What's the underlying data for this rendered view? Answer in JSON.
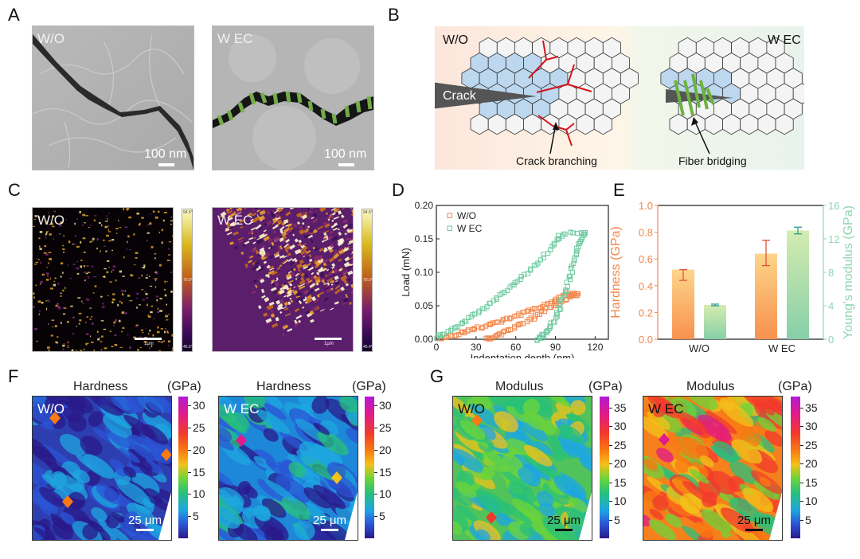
{
  "panels": {
    "A": {
      "letter": "A",
      "left": {
        "label": "W/O",
        "scale": "100 nm"
      },
      "right": {
        "label": "W EC",
        "scale": "100 nm"
      }
    },
    "B": {
      "letter": "B",
      "left_label": "W/O",
      "right_label": "W EC",
      "crack_label": "Crack",
      "annot_left": "Crack branching",
      "annot_right": "Fiber bridging",
      "colors": {
        "grain": "#f4f4f4",
        "affected_grain": "#bcd7ee",
        "crack": "#555555",
        "branch": "#d4141b",
        "fiber": "#6db33f"
      }
    },
    "C": {
      "letter": "C",
      "left": {
        "label": "W/O",
        "scale": "1μm",
        "cb_max": "94.5°",
        "cb_mid": "70.0°",
        "cb_min": "45.5°"
      },
      "right": {
        "label": "W EC",
        "scale": "1μm",
        "cb_max": "94.6°",
        "cb_mid": "70.0°",
        "cb_min": "45.4°"
      }
    },
    "D": {
      "letter": "D"
    },
    "E": {
      "letter": "E"
    },
    "F": {
      "letter": "F",
      "left": {
        "title": "Hardness",
        "unit": "(GPa)",
        "label": "W/O",
        "scale": "25 μm"
      },
      "right": {
        "title": "Hardness",
        "unit": "(GPa)",
        "label": "W EC",
        "scale": "25 μm"
      },
      "ticks": [
        "30",
        "25",
        "20",
        "15",
        "10",
        "5"
      ]
    },
    "G": {
      "letter": "G",
      "left": {
        "title": "Modulus",
        "unit": "(GPa)",
        "label": "W/O",
        "scale": "25 μm"
      },
      "right": {
        "title": "Modulus",
        "unit": "(GPa)",
        "label": "W EC",
        "scale": "25 μm"
      },
      "ticks": [
        "35",
        "30",
        "25",
        "20",
        "15",
        "10",
        "5"
      ]
    }
  },
  "chart_data": [
    {
      "id": "D",
      "type": "scatter",
      "title": "",
      "xlabel": "Indentation depth (nm)",
      "ylabel": "Load (mN)",
      "xlim": [
        0,
        130
      ],
      "ylim": [
        0,
        0.2
      ],
      "xticks": [
        "0",
        "30",
        "60",
        "90",
        "120"
      ],
      "yticks": [
        "0.00",
        "0.05",
        "0.10",
        "0.15",
        "0.20"
      ],
      "legend_position": "top-left",
      "series": [
        {
          "name": "W/O",
          "color": "#f4874b",
          "loading": [
            [
              0,
              0
            ],
            [
              10,
              0.004
            ],
            [
              20,
              0.01
            ],
            [
              30,
              0.016
            ],
            [
              40,
              0.022
            ],
            [
              50,
              0.028
            ],
            [
              60,
              0.035
            ],
            [
              70,
              0.042
            ],
            [
              80,
              0.05
            ],
            [
              90,
              0.058
            ],
            [
              98,
              0.068
            ],
            [
              107,
              0.068
            ]
          ],
          "unloading": [
            [
              107,
              0.068
            ],
            [
              100,
              0.062
            ],
            [
              90,
              0.052
            ],
            [
              80,
              0.04
            ],
            [
              70,
              0.028
            ],
            [
              60,
              0.018
            ],
            [
              50,
              0.009
            ],
            [
              42,
              0.002
            ],
            [
              38,
              0.0
            ]
          ]
        },
        {
          "name": "W EC",
          "color": "#6fcaa0",
          "loading": [
            [
              0,
              0.003
            ],
            [
              10,
              0.012
            ],
            [
              20,
              0.024
            ],
            [
              30,
              0.038
            ],
            [
              40,
              0.052
            ],
            [
              50,
              0.068
            ],
            [
              60,
              0.085
            ],
            [
              70,
              0.102
            ],
            [
              80,
              0.122
            ],
            [
              90,
              0.145
            ],
            [
              95,
              0.158
            ],
            [
              112,
              0.158
            ]
          ],
          "unloading": [
            [
              112,
              0.158
            ],
            [
              108,
              0.145
            ],
            [
              105,
              0.125
            ],
            [
              102,
              0.1
            ],
            [
              98,
              0.075
            ],
            [
              94,
              0.05
            ],
            [
              90,
              0.03
            ],
            [
              85,
              0.015
            ],
            [
              80,
              0.004
            ],
            [
              77,
              0.0
            ]
          ]
        }
      ]
    },
    {
      "id": "E",
      "type": "bar",
      "categories": [
        "W/O",
        "W EC"
      ],
      "ylabel_left": "Hardness (GPa)",
      "ylabel_right": "Young's modulus (GPa)",
      "ylim_left": [
        0,
        1.0
      ],
      "ylim_right": [
        0,
        16
      ],
      "yticks_left": [
        "0.0",
        "0.2",
        "0.4",
        "0.6",
        "0.8",
        "1.0"
      ],
      "yticks_right": [
        "0",
        "4",
        "8",
        "12",
        "16"
      ],
      "series": [
        {
          "name": "Hardness",
          "axis": "left",
          "values": [
            0.52,
            0.64
          ],
          "err_low": [
            0.44,
            0.55
          ],
          "err_high": [
            0.52,
            0.74
          ],
          "color_top": "#fdd58a",
          "color_bottom": "#f8914e",
          "err_color": "#e0533d"
        },
        {
          "name": "Young's modulus",
          "axis": "right",
          "values": [
            4.1,
            13.0
          ],
          "err_low": [
            4.0,
            12.6
          ],
          "err_high": [
            4.2,
            13.4
          ],
          "color_top": "#d5ecb0",
          "color_bottom": "#86cfa8",
          "err_color": "#2a9d8f"
        }
      ],
      "left_axis_color": "#f4874b",
      "right_axis_color": "#8fd6b2"
    }
  ]
}
